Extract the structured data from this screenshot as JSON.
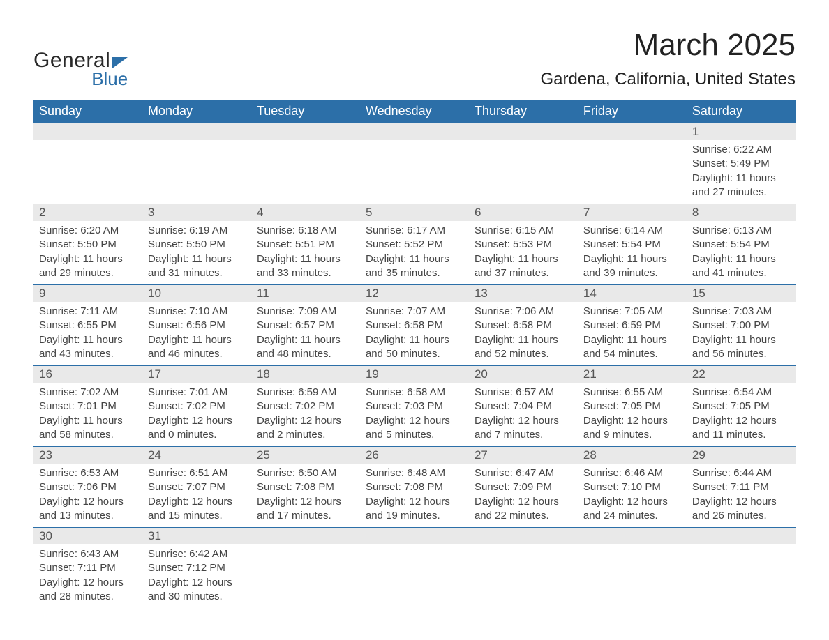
{
  "logo": {
    "general": "General",
    "blue": "Blue"
  },
  "title": "March 2025",
  "location": "Gardena, California, United States",
  "colors": {
    "header_bg": "#2c6fa8",
    "header_text": "#ffffff",
    "daynum_bg": "#e9e9e9",
    "row_border": "#2c6fa8",
    "body_text": "#444444",
    "page_bg": "#ffffff"
  },
  "day_headers": [
    "Sunday",
    "Monday",
    "Tuesday",
    "Wednesday",
    "Thursday",
    "Friday",
    "Saturday"
  ],
  "weeks": [
    {
      "nums": [
        "",
        "",
        "",
        "",
        "",
        "",
        "1"
      ],
      "cells": [
        null,
        null,
        null,
        null,
        null,
        null,
        {
          "sunrise": "Sunrise: 6:22 AM",
          "sunset": "Sunset: 5:49 PM",
          "day1": "Daylight: 11 hours",
          "day2": "and 27 minutes."
        }
      ]
    },
    {
      "nums": [
        "2",
        "3",
        "4",
        "5",
        "6",
        "7",
        "8"
      ],
      "cells": [
        {
          "sunrise": "Sunrise: 6:20 AM",
          "sunset": "Sunset: 5:50 PM",
          "day1": "Daylight: 11 hours",
          "day2": "and 29 minutes."
        },
        {
          "sunrise": "Sunrise: 6:19 AM",
          "sunset": "Sunset: 5:50 PM",
          "day1": "Daylight: 11 hours",
          "day2": "and 31 minutes."
        },
        {
          "sunrise": "Sunrise: 6:18 AM",
          "sunset": "Sunset: 5:51 PM",
          "day1": "Daylight: 11 hours",
          "day2": "and 33 minutes."
        },
        {
          "sunrise": "Sunrise: 6:17 AM",
          "sunset": "Sunset: 5:52 PM",
          "day1": "Daylight: 11 hours",
          "day2": "and 35 minutes."
        },
        {
          "sunrise": "Sunrise: 6:15 AM",
          "sunset": "Sunset: 5:53 PM",
          "day1": "Daylight: 11 hours",
          "day2": "and 37 minutes."
        },
        {
          "sunrise": "Sunrise: 6:14 AM",
          "sunset": "Sunset: 5:54 PM",
          "day1": "Daylight: 11 hours",
          "day2": "and 39 minutes."
        },
        {
          "sunrise": "Sunrise: 6:13 AM",
          "sunset": "Sunset: 5:54 PM",
          "day1": "Daylight: 11 hours",
          "day2": "and 41 minutes."
        }
      ]
    },
    {
      "nums": [
        "9",
        "10",
        "11",
        "12",
        "13",
        "14",
        "15"
      ],
      "cells": [
        {
          "sunrise": "Sunrise: 7:11 AM",
          "sunset": "Sunset: 6:55 PM",
          "day1": "Daylight: 11 hours",
          "day2": "and 43 minutes."
        },
        {
          "sunrise": "Sunrise: 7:10 AM",
          "sunset": "Sunset: 6:56 PM",
          "day1": "Daylight: 11 hours",
          "day2": "and 46 minutes."
        },
        {
          "sunrise": "Sunrise: 7:09 AM",
          "sunset": "Sunset: 6:57 PM",
          "day1": "Daylight: 11 hours",
          "day2": "and 48 minutes."
        },
        {
          "sunrise": "Sunrise: 7:07 AM",
          "sunset": "Sunset: 6:58 PM",
          "day1": "Daylight: 11 hours",
          "day2": "and 50 minutes."
        },
        {
          "sunrise": "Sunrise: 7:06 AM",
          "sunset": "Sunset: 6:58 PM",
          "day1": "Daylight: 11 hours",
          "day2": "and 52 minutes."
        },
        {
          "sunrise": "Sunrise: 7:05 AM",
          "sunset": "Sunset: 6:59 PM",
          "day1": "Daylight: 11 hours",
          "day2": "and 54 minutes."
        },
        {
          "sunrise": "Sunrise: 7:03 AM",
          "sunset": "Sunset: 7:00 PM",
          "day1": "Daylight: 11 hours",
          "day2": "and 56 minutes."
        }
      ]
    },
    {
      "nums": [
        "16",
        "17",
        "18",
        "19",
        "20",
        "21",
        "22"
      ],
      "cells": [
        {
          "sunrise": "Sunrise: 7:02 AM",
          "sunset": "Sunset: 7:01 PM",
          "day1": "Daylight: 11 hours",
          "day2": "and 58 minutes."
        },
        {
          "sunrise": "Sunrise: 7:01 AM",
          "sunset": "Sunset: 7:02 PM",
          "day1": "Daylight: 12 hours",
          "day2": "and 0 minutes."
        },
        {
          "sunrise": "Sunrise: 6:59 AM",
          "sunset": "Sunset: 7:02 PM",
          "day1": "Daylight: 12 hours",
          "day2": "and 2 minutes."
        },
        {
          "sunrise": "Sunrise: 6:58 AM",
          "sunset": "Sunset: 7:03 PM",
          "day1": "Daylight: 12 hours",
          "day2": "and 5 minutes."
        },
        {
          "sunrise": "Sunrise: 6:57 AM",
          "sunset": "Sunset: 7:04 PM",
          "day1": "Daylight: 12 hours",
          "day2": "and 7 minutes."
        },
        {
          "sunrise": "Sunrise: 6:55 AM",
          "sunset": "Sunset: 7:05 PM",
          "day1": "Daylight: 12 hours",
          "day2": "and 9 minutes."
        },
        {
          "sunrise": "Sunrise: 6:54 AM",
          "sunset": "Sunset: 7:05 PM",
          "day1": "Daylight: 12 hours",
          "day2": "and 11 minutes."
        }
      ]
    },
    {
      "nums": [
        "23",
        "24",
        "25",
        "26",
        "27",
        "28",
        "29"
      ],
      "cells": [
        {
          "sunrise": "Sunrise: 6:53 AM",
          "sunset": "Sunset: 7:06 PM",
          "day1": "Daylight: 12 hours",
          "day2": "and 13 minutes."
        },
        {
          "sunrise": "Sunrise: 6:51 AM",
          "sunset": "Sunset: 7:07 PM",
          "day1": "Daylight: 12 hours",
          "day2": "and 15 minutes."
        },
        {
          "sunrise": "Sunrise: 6:50 AM",
          "sunset": "Sunset: 7:08 PM",
          "day1": "Daylight: 12 hours",
          "day2": "and 17 minutes."
        },
        {
          "sunrise": "Sunrise: 6:48 AM",
          "sunset": "Sunset: 7:08 PM",
          "day1": "Daylight: 12 hours",
          "day2": "and 19 minutes."
        },
        {
          "sunrise": "Sunrise: 6:47 AM",
          "sunset": "Sunset: 7:09 PM",
          "day1": "Daylight: 12 hours",
          "day2": "and 22 minutes."
        },
        {
          "sunrise": "Sunrise: 6:46 AM",
          "sunset": "Sunset: 7:10 PM",
          "day1": "Daylight: 12 hours",
          "day2": "and 24 minutes."
        },
        {
          "sunrise": "Sunrise: 6:44 AM",
          "sunset": "Sunset: 7:11 PM",
          "day1": "Daylight: 12 hours",
          "day2": "and 26 minutes."
        }
      ]
    },
    {
      "nums": [
        "30",
        "31",
        "",
        "",
        "",
        "",
        ""
      ],
      "cells": [
        {
          "sunrise": "Sunrise: 6:43 AM",
          "sunset": "Sunset: 7:11 PM",
          "day1": "Daylight: 12 hours",
          "day2": "and 28 minutes."
        },
        {
          "sunrise": "Sunrise: 6:42 AM",
          "sunset": "Sunset: 7:12 PM",
          "day1": "Daylight: 12 hours",
          "day2": "and 30 minutes."
        },
        null,
        null,
        null,
        null,
        null
      ]
    }
  ]
}
